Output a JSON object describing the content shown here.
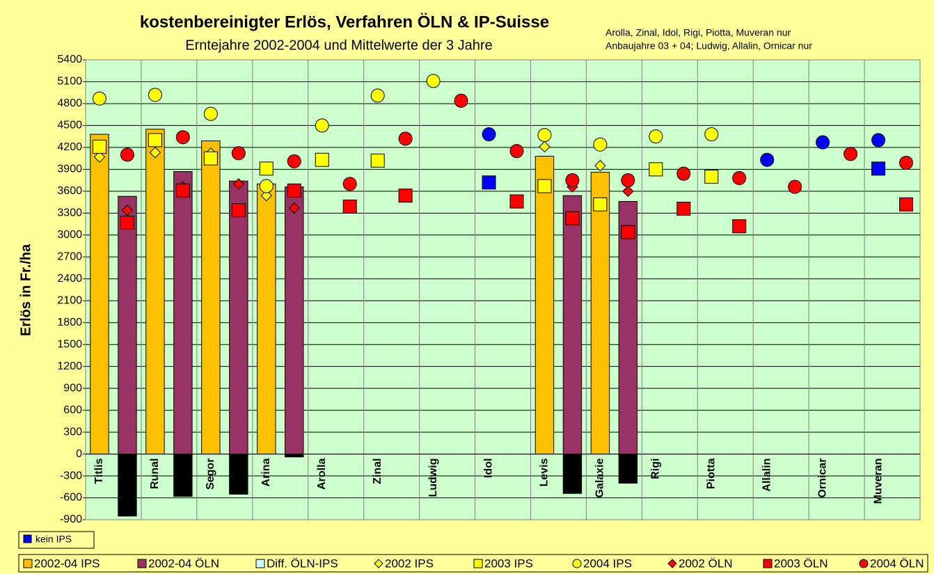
{
  "chart_data": {
    "type": "bar",
    "title": "kostenbereinigter Erlös, Verfahren ÖLN & IP-Suisse",
    "subtitle": "Erntejahre 2002-2004 und Mittelwerte der 3 Jahre",
    "annotation": [
      "Arolla, Zinal, Idol, Rigi, Piotta, Muveran nur",
      "Anbaujahre 03 + 04; Ludwig, Allalin, Ornicar  nur"
    ],
    "y_label": "Erlös in Fr./ha",
    "background": "#FFFF99",
    "plot_background": "#CCFFCC",
    "grid": true,
    "ylim": [
      -900,
      5400
    ],
    "yticks": [
      -900,
      -600,
      -300,
      0,
      300,
      600,
      900,
      1200,
      1500,
      1800,
      2100,
      2400,
      2700,
      3000,
      3300,
      3600,
      3900,
      4200,
      4500,
      4800,
      5100,
      5400
    ],
    "categories": [
      "Titlis",
      null,
      "Runal",
      null,
      "Segor",
      null,
      "Arina",
      null,
      "Arolla",
      null,
      "Zinal",
      null,
      "Ludwig",
      null,
      "Idol",
      null,
      "Levis",
      null,
      "Galaxie",
      null,
      "Rigi",
      null,
      "Piotta",
      null,
      "Allalin",
      null,
      "Ornicar",
      null,
      "Muveran",
      null
    ],
    "kein_ips_legend": {
      "label": "kein IPS",
      "color": "#0000FF"
    },
    "legend": "bottom",
    "series": [
      {
        "name": "2002-04  IPS",
        "type": "bar",
        "color": "#FFC000",
        "values": [
          4380,
          null,
          4450,
          null,
          4290,
          null,
          3700,
          null,
          null,
          null,
          null,
          null,
          null,
          null,
          null,
          null,
          4080,
          null,
          3860,
          null,
          null,
          null,
          null,
          null,
          null,
          null,
          null,
          null,
          null,
          null
        ]
      },
      {
        "name": "2002-04 ÖLN",
        "type": "bar",
        "color": "#993366",
        "values": [
          null,
          3530,
          null,
          3870,
          null,
          3740,
          null,
          3660,
          null,
          null,
          null,
          null,
          null,
          null,
          null,
          null,
          null,
          3540,
          null,
          3460,
          null,
          null,
          null,
          null,
          null,
          null,
          null,
          null,
          null,
          null
        ]
      },
      {
        "name": "Diff. ÖLN-IPS",
        "type": "bar",
        "color": "#000000",
        "legend_color": "#CCFFFF",
        "values": [
          null,
          -850,
          null,
          -580,
          null,
          -550,
          null,
          -40,
          null,
          null,
          null,
          null,
          null,
          null,
          null,
          null,
          null,
          -540,
          null,
          -400,
          null,
          null,
          null,
          null,
          null,
          null,
          null,
          null,
          null,
          null
        ]
      },
      {
        "name": "2002 IPS",
        "type": "scatter",
        "marker": "diamond",
        "color": "#FFFF00",
        "values": [
          4070,
          null,
          4130,
          null,
          4120,
          null,
          3540,
          null,
          null,
          null,
          null,
          null,
          null,
          null,
          null,
          null,
          4210,
          null,
          3950,
          null,
          null,
          null,
          null,
          null,
          null,
          null,
          null,
          null,
          null,
          null
        ]
      },
      {
        "name": "2003 IPS",
        "type": "scatter",
        "marker": "square",
        "color": "#FFFF00",
        "point_colors": [
          null,
          null,
          null,
          null,
          null,
          null,
          null,
          null,
          null,
          null,
          null,
          null,
          null,
          null,
          "#0000FF",
          null,
          null,
          null,
          null,
          null,
          null,
          null,
          null,
          null,
          null,
          null,
          null,
          null,
          "#0000FF",
          null
        ],
        "values": [
          4210,
          null,
          4300,
          null,
          4050,
          null,
          3910,
          null,
          4030,
          null,
          4020,
          null,
          null,
          null,
          3720,
          null,
          3670,
          null,
          3420,
          null,
          3900,
          null,
          3800,
          null,
          null,
          null,
          null,
          null,
          3910,
          null
        ]
      },
      {
        "name": "2004 IPS",
        "type": "scatter",
        "marker": "circle",
        "color": "#FFFF00",
        "point_colors": [
          null,
          null,
          null,
          null,
          null,
          null,
          null,
          null,
          null,
          null,
          null,
          null,
          null,
          null,
          "#0000FF",
          null,
          null,
          null,
          null,
          null,
          null,
          null,
          null,
          null,
          "#0000FF",
          null,
          "#0000FF",
          null,
          "#0000FF",
          null
        ],
        "values": [
          4870,
          null,
          4920,
          null,
          4660,
          null,
          3670,
          null,
          4500,
          null,
          4910,
          null,
          5110,
          null,
          4380,
          null,
          4370,
          null,
          4240,
          null,
          4350,
          null,
          4380,
          null,
          4030,
          null,
          4270,
          null,
          4300,
          null
        ]
      },
      {
        "name": "2002 ÖLN",
        "type": "scatter",
        "marker": "diamond",
        "color": "#FF0000",
        "values": [
          null,
          3340,
          null,
          3660,
          null,
          3700,
          null,
          3370,
          null,
          null,
          null,
          null,
          null,
          null,
          null,
          null,
          null,
          3660,
          null,
          3600,
          null,
          null,
          null,
          null,
          null,
          null,
          null,
          null,
          null,
          null
        ]
      },
      {
        "name": "2003 ÖLN",
        "type": "scatter",
        "marker": "square",
        "color": "#FF0000",
        "values": [
          null,
          3170,
          null,
          3610,
          null,
          3340,
          null,
          3610,
          null,
          3390,
          null,
          3540,
          null,
          null,
          null,
          3460,
          null,
          3230,
          null,
          3040,
          null,
          3360,
          null,
          3120,
          null,
          null,
          null,
          null,
          null,
          3420
        ]
      },
      {
        "name": "2004 ÖLN",
        "type": "scatter",
        "marker": "circle",
        "color": "#FF0000",
        "values": [
          null,
          4100,
          null,
          4340,
          null,
          4120,
          null,
          4010,
          null,
          3700,
          null,
          4320,
          null,
          4840,
          null,
          4150,
          null,
          3750,
          null,
          3750,
          null,
          3840,
          null,
          3780,
          null,
          3660,
          null,
          4110,
          null,
          3990
        ]
      }
    ]
  }
}
